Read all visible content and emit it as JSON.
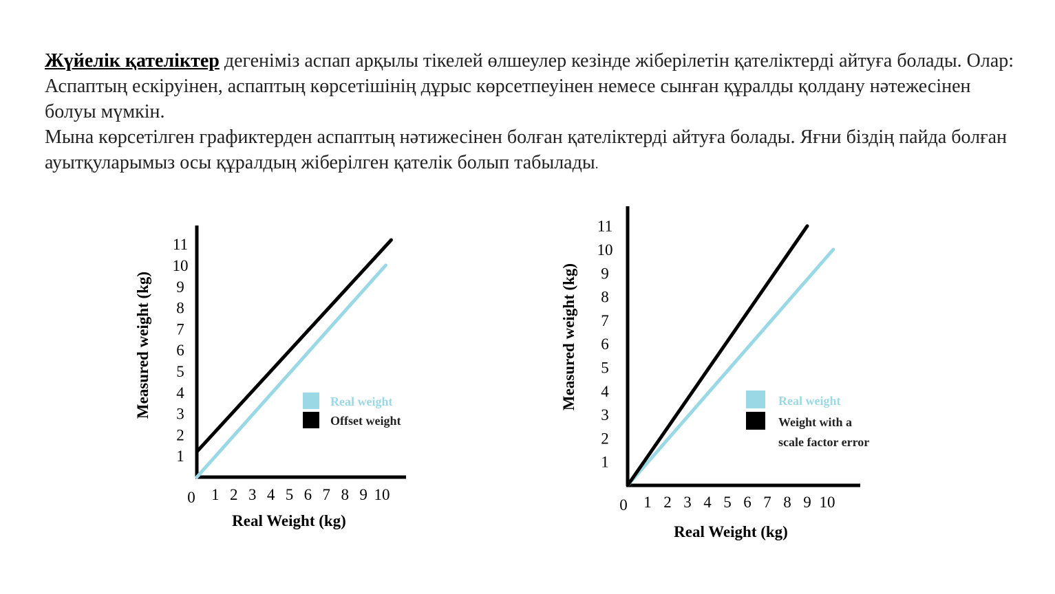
{
  "text": {
    "term": "Жүйелік қателіктер",
    "para1_rest": " дегеніміз аспап арқылы тікелей өлшеулер кезінде жіберілетін қателіктерді айтуға болады. Олар: Аспаптың ескіруінен, аспаптың көрсетішінің дұрыс көрсетпеуінен немесе сынған құралды қолдану нәтежесінен болуы мүмкін.",
    "para2": "Мына көрсетілген графиктерден аспаптың нәтижесінен болған қателіктерді айтуға болады. Яғни біздің пайда болған ауытқуларымыз осы құралдың жіберілген қателік болып табылады",
    "para2_end": "."
  },
  "colors": {
    "real": "#9ad8e6",
    "measured": "#000000",
    "axis": "#000000"
  },
  "chart_data": [
    {
      "type": "line",
      "xlabel": "Real Weight (kg)",
      "ylabel": "Measured weight (kg)",
      "x_ticks": [
        "0",
        "1",
        "2",
        "3",
        "4",
        "5",
        "6",
        "7",
        "8",
        "9",
        "10"
      ],
      "y_ticks": [
        "1",
        "2",
        "3",
        "4",
        "5",
        "6",
        "7",
        "8",
        "9",
        "10",
        "11"
      ],
      "xlim": [
        0,
        11.5
      ],
      "ylim": [
        0,
        12
      ],
      "legend_position": "right",
      "series": [
        {
          "name": "Real weight",
          "color": "#9ad8e6",
          "x": [
            0,
            10.2
          ],
          "y": [
            0,
            10.0
          ]
        },
        {
          "name": "Offset weight",
          "color": "#000000",
          "x": [
            0,
            10.5
          ],
          "y": [
            1.2,
            11.2
          ]
        }
      ]
    },
    {
      "type": "line",
      "xlabel": "Real Weight (kg)",
      "ylabel": "Measured weight (kg)",
      "x_ticks": [
        "0",
        "1",
        "2",
        "3",
        "4",
        "5",
        "6",
        "7",
        "8",
        "9",
        "10"
      ],
      "y_ticks": [
        "1",
        "2",
        "3",
        "4",
        "5",
        "6",
        "7",
        "8",
        "9",
        "10",
        "11"
      ],
      "xlim": [
        0,
        11.5
      ],
      "ylim": [
        0,
        12
      ],
      "legend_position": "right",
      "series": [
        {
          "name": "Real weight",
          "color": "#9ad8e6",
          "x": [
            0,
            10.3
          ],
          "y": [
            0,
            10.0
          ]
        },
        {
          "name": "Weight with a scale factor error",
          "color": "#000000",
          "x": [
            0,
            9.0
          ],
          "y": [
            0,
            11.0
          ]
        }
      ]
    }
  ]
}
